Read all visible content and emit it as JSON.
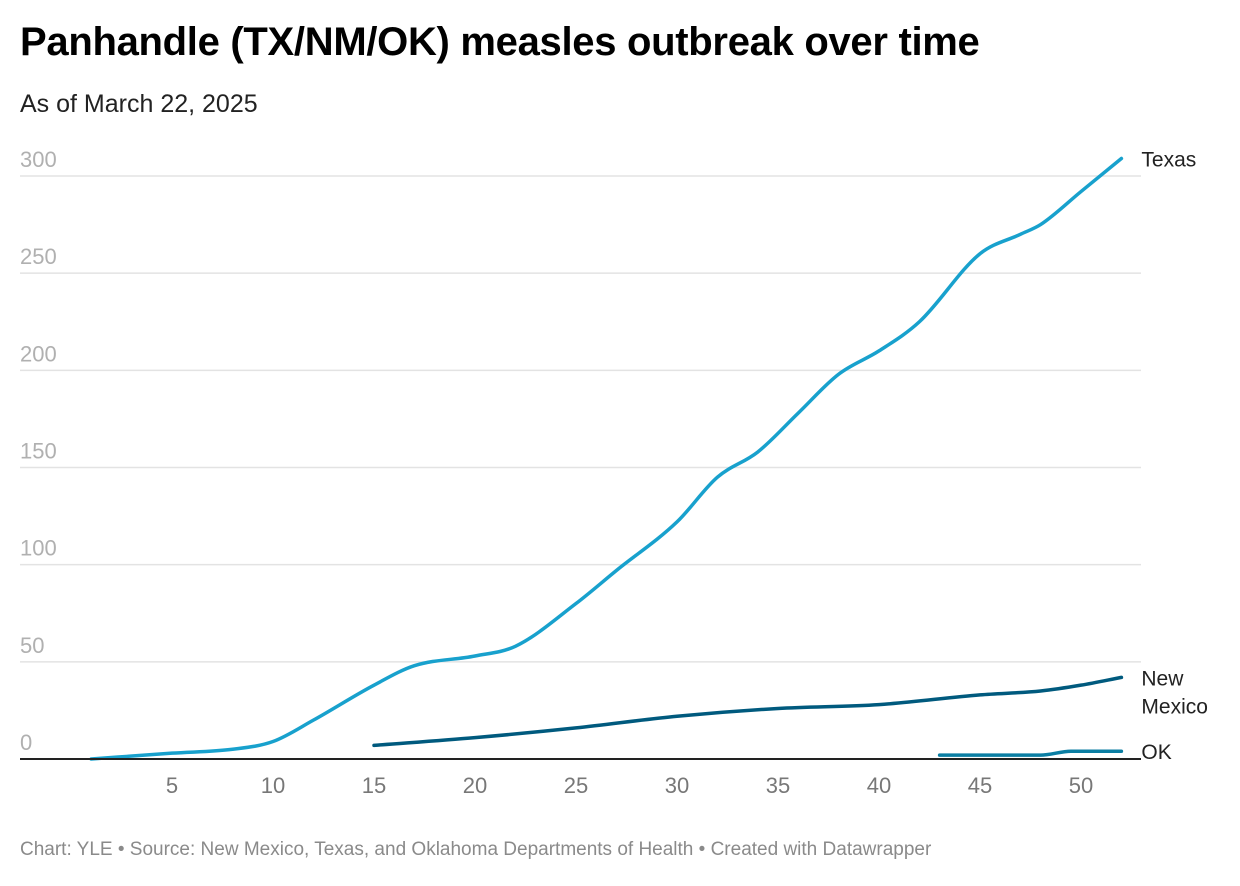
{
  "chart_data": {
    "type": "line",
    "title": "Panhandle (TX/NM/OK) measles outbreak over time",
    "subtitle": "As of March 22, 2025",
    "xlabel": "",
    "ylabel": "",
    "xlim": [
      1,
      52
    ],
    "ylim": [
      0,
      300
    ],
    "xticks": [
      5,
      10,
      15,
      20,
      25,
      30,
      35,
      40,
      45,
      50
    ],
    "yticks": [
      0,
      50,
      100,
      150,
      200,
      250,
      300
    ],
    "grid": true,
    "legend": "direct labels at line ends (right)",
    "series": [
      {
        "name": "Texas",
        "label": [
          "Texas"
        ],
        "color": "#18a1cd",
        "x": [
          1,
          5,
          8,
          10,
          12,
          15,
          17,
          20,
          22,
          25,
          27,
          30,
          32,
          34,
          36,
          38,
          40,
          42,
          45,
          47,
          48,
          50,
          52
        ],
        "y": [
          0,
          3,
          5,
          9,
          20,
          38,
          48,
          53,
          58,
          80,
          97,
          122,
          145,
          158,
          178,
          198,
          210,
          225,
          260,
          270,
          275,
          292,
          309
        ]
      },
      {
        "name": "New Mexico",
        "label": [
          "New",
          "Mexico"
        ],
        "color": "#005a7e",
        "x": [
          15,
          20,
          25,
          30,
          35,
          40,
          45,
          48,
          50,
          52
        ],
        "y": [
          7,
          11,
          16,
          22,
          26,
          28,
          33,
          35,
          38,
          42
        ]
      },
      {
        "name": "OK",
        "label": [
          "OK"
        ],
        "color": "#0b7ea3",
        "x": [
          43,
          48,
          49.5,
          52
        ],
        "y": [
          2,
          2,
          4,
          4
        ]
      }
    ]
  },
  "footer": "Chart: YLE • Source: New Mexico, Texas, and Oklahoma Departments of Health • Created with Datawrapper"
}
